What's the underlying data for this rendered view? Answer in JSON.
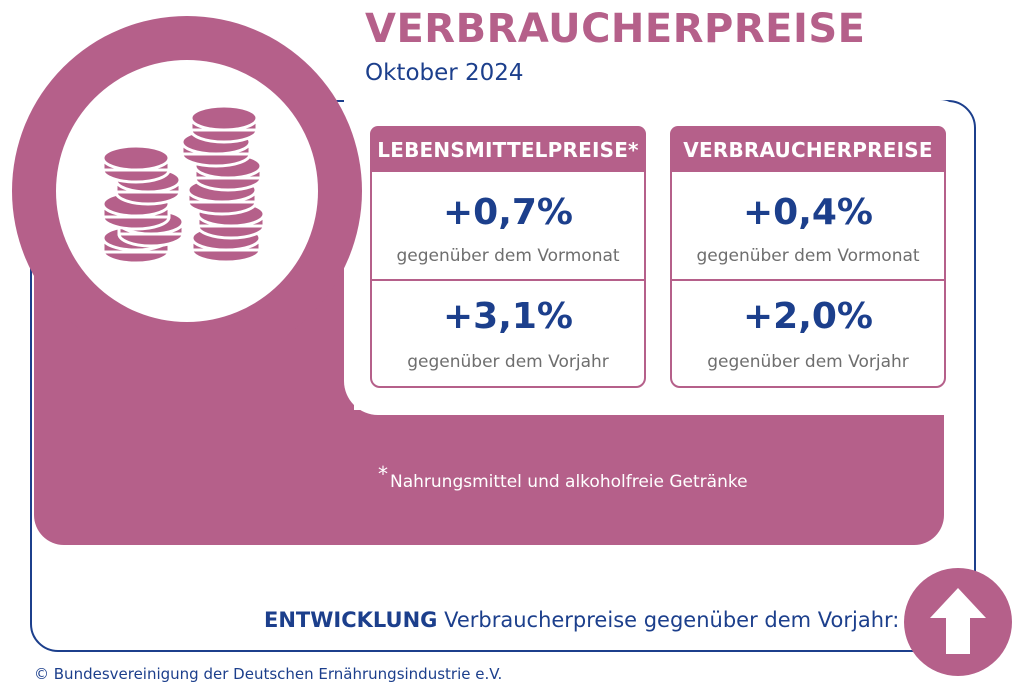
{
  "header": {
    "title": "VERBRAUCHERPREISE",
    "subtitle": "Oktober 2024"
  },
  "cards": [
    {
      "heading": "LEBENSMITTELPREISE*",
      "month_value": "+0,7%",
      "month_label": "gegenüber dem Vormonat",
      "year_value": "+3,1%",
      "year_label": "gegenüber dem Vorjahr"
    },
    {
      "heading": "VERBRAUCHERPREISE",
      "month_value": "+0,4%",
      "month_label": "gegenüber dem Vormonat",
      "year_value": "+2,0%",
      "year_label": "gegenüber dem Vorjahr"
    }
  ],
  "footnote": {
    "marker": "*",
    "text": "Nahrungsmittel und alkoholfreie Getränke"
  },
  "trend": {
    "label": "ENTWICKLUNG",
    "text": "Verbraucherpreise gegenüber dem Vorjahr:",
    "icon": "arrow-up-icon"
  },
  "copyright": "© Bundesvereinigung der Deutschen Ernährungsindustrie e.V.",
  "colors": {
    "accent": "#b5608a",
    "primary": "#1c3f8c"
  }
}
